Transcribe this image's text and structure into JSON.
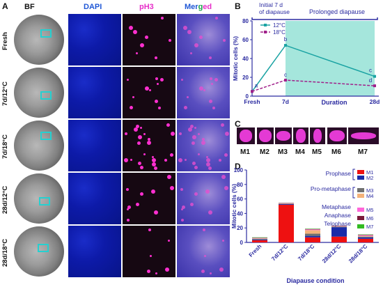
{
  "panel_a": {
    "letter": "A",
    "columns": [
      "BF",
      "DAPI",
      "pH3",
      "Merged"
    ],
    "merged_parts": [
      "Mer",
      "g",
      "ed"
    ],
    "rows": [
      "Fresh",
      "7d/12°C",
      "7d/18°C",
      "28d/12°C",
      "28d/18°C"
    ]
  },
  "panel_b": {
    "letter": "B",
    "phase_initial": "Initial 7 d\nof diapause",
    "phase_prolonged": "Prolonged diapause",
    "chart_data": {
      "type": "line",
      "x": [
        "Fresh",
        "7d",
        "28d"
      ],
      "xlabel": "Duration",
      "ylabel": "Mitotic cells (%)",
      "ylim": [
        0,
        80
      ],
      "yticks": [
        0,
        20,
        40,
        60,
        80
      ],
      "grid": false,
      "legend": "top-left",
      "series": [
        {
          "name": "12°C",
          "color": "#1aa3a3",
          "values": [
            5,
            54,
            21
          ],
          "letters": [
            "a",
            "b",
            "c"
          ]
        },
        {
          "name": "18°C",
          "color": "#a0208a",
          "values": [
            5,
            17,
            11
          ],
          "letters": [
            "",
            "c",
            "d"
          ]
        }
      ]
    }
  },
  "panel_c": {
    "letter": "C",
    "labels": [
      "M1",
      "M2",
      "M3",
      "M4",
      "M5",
      "M6",
      "M7"
    ]
  },
  "panel_d": {
    "letter": "D",
    "chart_data": {
      "type": "bar",
      "stacked": true,
      "categories": [
        "Fresh",
        "7d/12°C",
        "7d/18°C",
        "28d/12°C",
        "28d/18°C"
      ],
      "xlabel": "Diapause condition",
      "ylabel": "Mitotic cells (%)",
      "ylim": [
        0,
        100
      ],
      "yticks": [
        0,
        20,
        40,
        60,
        80,
        100
      ],
      "series": [
        {
          "name": "M1",
          "color": "#ee1111",
          "values": [
            3,
            52,
            7,
            8,
            5
          ]
        },
        {
          "name": "M2",
          "color": "#1a2aa8",
          "values": [
            1,
            1,
            2,
            13,
            2
          ]
        },
        {
          "name": "M3",
          "color": "#707070",
          "values": [
            1,
            0.5,
            3,
            1,
            1
          ]
        },
        {
          "name": "M4",
          "color": "#f4b27a",
          "values": [
            0.5,
            0.5,
            5,
            0.5,
            1
          ]
        },
        {
          "name": "M5",
          "color": "#ff66d8",
          "values": [
            0.5,
            0.5,
            1,
            0.5,
            1
          ]
        },
        {
          "name": "M6",
          "color": "#7a1a3a",
          "values": [
            0.5,
            0.2,
            0.5,
            0.2,
            0.5
          ]
        },
        {
          "name": "M7",
          "color": "#33bb22",
          "values": [
            0.5,
            0.2,
            0.5,
            0.2,
            0.5
          ]
        }
      ],
      "legend_groups": [
        {
          "label": "Prophase",
          "items": [
            "M1",
            "M2"
          ]
        },
        {
          "label": "Pro-metaphase",
          "items": [
            "M3",
            "M4"
          ]
        },
        {
          "label": "Metaphase",
          "items": [
            "M5"
          ]
        },
        {
          "label": "Anaphase",
          "items": [
            "M6"
          ]
        },
        {
          "label": "Telophase",
          "items": [
            "M7"
          ]
        }
      ]
    }
  },
  "colors": {
    "dapi_label": "#1f57d6",
    "ph3_label": "#e62ec8",
    "box": "#25d0d0",
    "teal_band": "#9be3d8"
  }
}
